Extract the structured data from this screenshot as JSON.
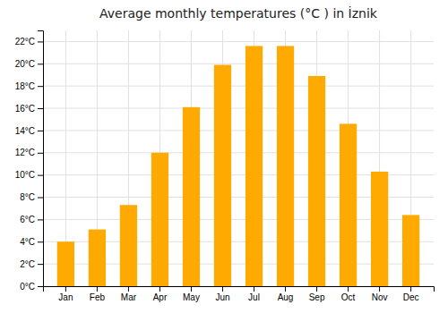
{
  "chart_data": {
    "type": "bar",
    "title": "Average monthly temperatures (°C ) in İznik",
    "categories": [
      "Jan",
      "Feb",
      "Mar",
      "Apr",
      "May",
      "Jun",
      "Jul",
      "Aug",
      "Sep",
      "Oct",
      "Nov",
      "Dec"
    ],
    "values": [
      4.0,
      5.1,
      7.3,
      12.0,
      16.1,
      19.9,
      21.6,
      21.6,
      18.9,
      14.6,
      10.3,
      6.4
    ],
    "color": "#FFAA00",
    "ylim": [
      0,
      23
    ],
    "yticks": [
      {
        "value": 0,
        "label": "0°C"
      },
      {
        "value": 2,
        "label": "2°C"
      },
      {
        "value": 4,
        "label": "4°C"
      },
      {
        "value": 6,
        "label": "6°C"
      },
      {
        "value": 8,
        "label": "8°C"
      },
      {
        "value": 10,
        "label": "10°C"
      },
      {
        "value": 12,
        "label": "12°C"
      },
      {
        "value": 14,
        "label": "14°C"
      },
      {
        "value": 16,
        "label": "16°C"
      },
      {
        "value": 18,
        "label": "18°C"
      },
      {
        "value": 20,
        "label": "20°C"
      },
      {
        "value": 22,
        "label": "22°C"
      }
    ],
    "grid": true
  }
}
